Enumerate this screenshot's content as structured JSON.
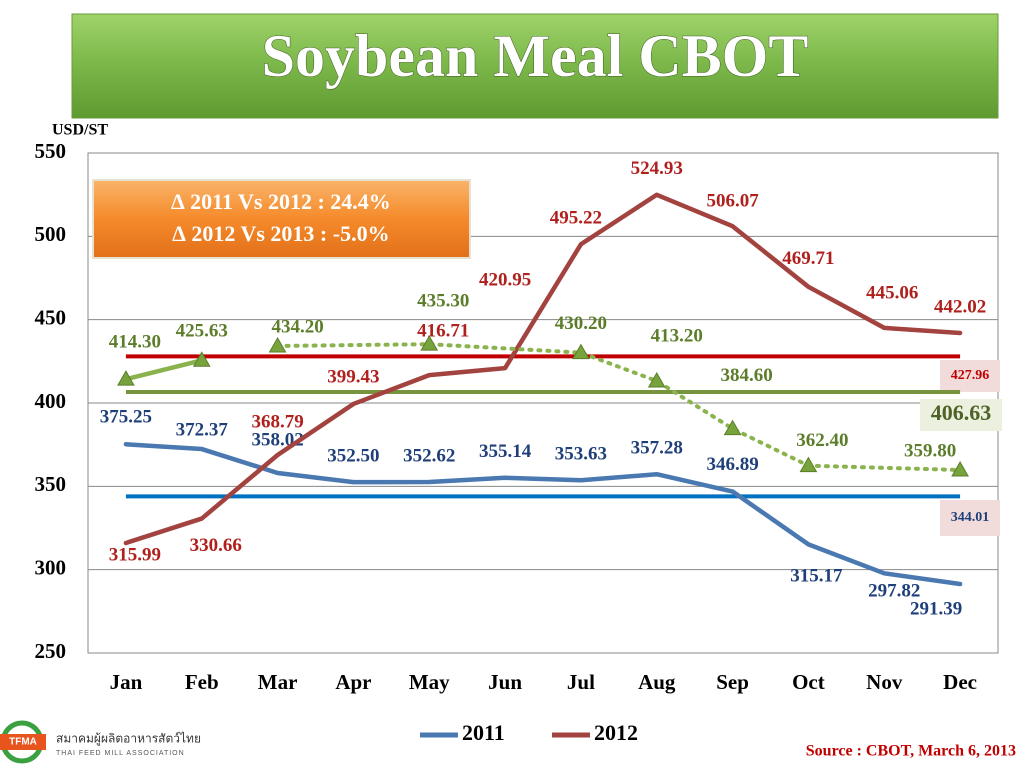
{
  "chart_data": {
    "type": "line",
    "title": "Soybean Meal CBOT",
    "y_axis_label": "USD/ST",
    "annotations": [
      "∆ 2011 Vs 2012 : 24.4%",
      "∆ 2012 Vs 2013 : -5.0%"
    ],
    "source": "Source : CBOT, March 6, 2013",
    "logo": {
      "mark": "TFMA",
      "name_th": "สมาคมผู้ผลิตอาหารสัตว์ไทย",
      "name_en": "THAI FEED MILL ASSOCIATION"
    },
    "categories": [
      "Jan",
      "Feb",
      "Mar",
      "Apr",
      "May",
      "Jun",
      "Jul",
      "Aug",
      "Sep",
      "Oct",
      "Nov",
      "Dec"
    ],
    "ylim": [
      250,
      550
    ],
    "yticks": [
      250,
      300,
      350,
      400,
      450,
      500,
      550
    ],
    "grid": true,
    "series": [
      {
        "name": "2011",
        "color": "#4a78b0",
        "label_color": "#1f3f7a",
        "values": [
          375.25,
          372.37,
          358.02,
          352.5,
          352.62,
          355.14,
          353.63,
          357.28,
          346.89,
          315.17,
          297.82,
          291.39
        ],
        "value_labels": [
          "375.25",
          "372.37",
          "358.02",
          "352.50",
          "352.62",
          "355.14",
          "353.63",
          "357.28",
          "346.89",
          "315.17",
          "297.82",
          "291.39"
        ]
      },
      {
        "name": "2012",
        "color": "#a3433f",
        "label_color": "#b0201c",
        "values": [
          315.99,
          330.66,
          368.79,
          399.43,
          416.71,
          420.95,
          495.22,
          524.93,
          506.07,
          469.71,
          445.06,
          442.02
        ],
        "value_labels": [
          "315.99",
          "330.66",
          "368.79",
          "399.43",
          "416.71",
          "420.95",
          "495.22",
          "524.93",
          "506.07",
          "469.71",
          "445.06",
          "442.02"
        ]
      },
      {
        "color": "#8ab34e",
        "label_color": "#5c7d2a",
        "marker": "triangle",
        "values": [
          414.3,
          425.63,
          null,
          null,
          null,
          null,
          null,
          null,
          null,
          null,
          null,
          null
        ],
        "value_labels": [
          "414.30",
          "425.63",
          null,
          null,
          null,
          null,
          null,
          null,
          null,
          null,
          null,
          null
        ]
      },
      {
        "color": "#8ab34e",
        "label_color": "#5c7d2a",
        "marker": "triangle",
        "dash": "dotted",
        "connect_gaps": true,
        "values": [
          null,
          null,
          434.2,
          null,
          435.3,
          null,
          430.2,
          413.2,
          384.6,
          362.4,
          null,
          359.8
        ],
        "value_labels": [
          null,
          null,
          "434.20",
          null,
          "435.30",
          null,
          "430.20",
          "413.20",
          "384.60",
          "362.40",
          null,
          "359.80"
        ]
      }
    ],
    "reference_lines": [
      {
        "value": 427.96,
        "color": "#c00000",
        "label_color": "#c00000",
        "label_bg": "#f2dcdb"
      },
      {
        "value": 406.63,
        "color": "#77933c",
        "label_color": "#4f6228",
        "label_bg": "#ebf1de"
      },
      {
        "value": 344.01,
        "color": "#0070c0",
        "label_color": "#1f3f7a",
        "label_bg": "#f2dcdb"
      }
    ]
  }
}
